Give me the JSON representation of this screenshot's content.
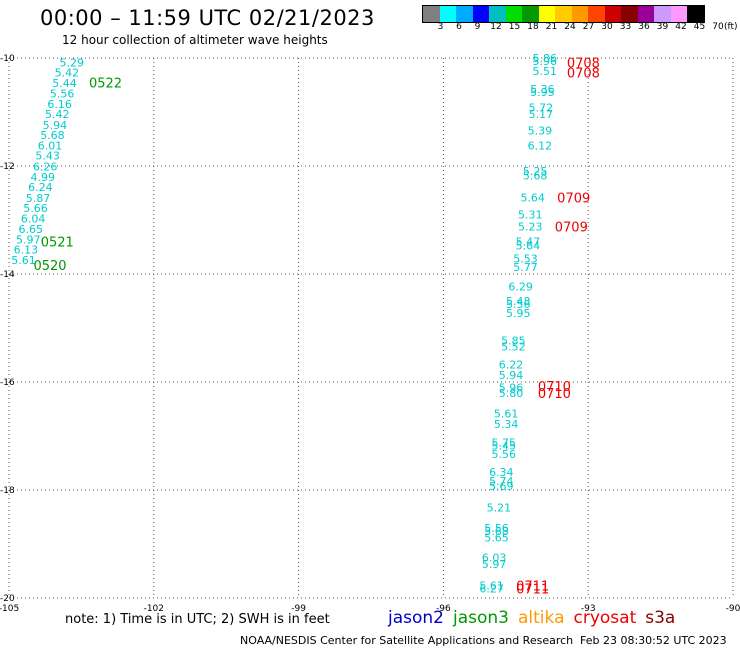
{
  "header": {
    "title": "00:00 – 11:59 UTC 02/21/2023",
    "subtitle": "12 hour collection of altimeter wave heights"
  },
  "colorbar": {
    "colors": [
      "#808080",
      "#00ffff",
      "#00aaff",
      "#0000ff",
      "#00bfbf",
      "#00dd00",
      "#009900",
      "#ffff00",
      "#ffcc00",
      "#ff9900",
      "#ff4400",
      "#cc0000",
      "#880000",
      "#990099",
      "#cc99ff",
      "#ff99ff",
      "#000000"
    ],
    "labels": [
      "3",
      "6",
      "9",
      "12",
      "15",
      "18",
      "21",
      "24",
      "27",
      "30",
      "33",
      "36",
      "39",
      "42",
      "45",
      "70"
    ],
    "unit": "(ft)"
  },
  "chart_data": {
    "type": "scatter",
    "title": "00:00 – 11:59 UTC 02/21/2023",
    "subtitle": "12 hour collection of altimeter wave heights",
    "xlim": [
      -105,
      -90
    ],
    "ylim": [
      -20,
      -10
    ],
    "x_ticks": [
      -105,
      -102,
      -99,
      -96,
      -93,
      -90
    ],
    "y_ticks": [
      -10,
      -12,
      -14,
      -16,
      -18,
      -20
    ],
    "x_tick_labels": [
      "-105",
      "-102",
      "-99",
      "-96",
      "-93",
      "-90"
    ],
    "y_tick_labels": [
      "-10",
      "-12",
      "-14",
      "-16",
      "-18",
      "-20"
    ],
    "grid": true,
    "swh_values": [
      {
        "x": -103.7,
        "y": -10.08,
        "label": "5.29"
      },
      {
        "x": -103.8,
        "y": -10.27,
        "label": "5.42"
      },
      {
        "x": -103.85,
        "y": -10.46,
        "label": "5.44"
      },
      {
        "x": -103.9,
        "y": -10.66,
        "label": "5.56"
      },
      {
        "x": -103.95,
        "y": -10.85,
        "label": "6.16"
      },
      {
        "x": -104.0,
        "y": -11.04,
        "label": "5.42"
      },
      {
        "x": -104.05,
        "y": -11.24,
        "label": "5.94"
      },
      {
        "x": -104.1,
        "y": -11.43,
        "label": "5.68"
      },
      {
        "x": -104.15,
        "y": -11.62,
        "label": "6.01"
      },
      {
        "x": -104.2,
        "y": -11.81,
        "label": "5.43"
      },
      {
        "x": -104.25,
        "y": -12.01,
        "label": "6.26"
      },
      {
        "x": -104.3,
        "y": -12.2,
        "label": "4.99"
      },
      {
        "x": -104.35,
        "y": -12.39,
        "label": "6.24"
      },
      {
        "x": -104.4,
        "y": -12.59,
        "label": "5.87"
      },
      {
        "x": -104.45,
        "y": -12.78,
        "label": "5.66"
      },
      {
        "x": -104.5,
        "y": -12.97,
        "label": "6.04"
      },
      {
        "x": -104.55,
        "y": -13.17,
        "label": "6.65"
      },
      {
        "x": -104.6,
        "y": -13.36,
        "label": "5.97"
      },
      {
        "x": -104.65,
        "y": -13.55,
        "label": "6.13"
      },
      {
        "x": -104.7,
        "y": -13.74,
        "label": "5.61"
      },
      {
        "x": -93.9,
        "y": -10.0,
        "label": "5.86"
      },
      {
        "x": -93.9,
        "y": -10.06,
        "label": "5.96"
      },
      {
        "x": -93.9,
        "y": -10.24,
        "label": "5.51"
      },
      {
        "x": -93.95,
        "y": -10.57,
        "label": "5.36"
      },
      {
        "x": -93.95,
        "y": -10.63,
        "label": "5.95"
      },
      {
        "x": -93.98,
        "y": -10.92,
        "label": "5.72"
      },
      {
        "x": -93.98,
        "y": -11.04,
        "label": "5.17"
      },
      {
        "x": -94.0,
        "y": -11.34,
        "label": "5.39"
      },
      {
        "x": -94.0,
        "y": -11.62,
        "label": "6.12"
      },
      {
        "x": -94.1,
        "y": -12.09,
        "label": "5.25"
      },
      {
        "x": -94.1,
        "y": -12.18,
        "label": "5.68"
      },
      {
        "x": -94.15,
        "y": -12.58,
        "label": "5.64"
      },
      {
        "x": -94.2,
        "y": -12.9,
        "label": "5.31"
      },
      {
        "x": -94.2,
        "y": -13.12,
        "label": "5.23"
      },
      {
        "x": -94.25,
        "y": -13.4,
        "label": "5.47"
      },
      {
        "x": -94.25,
        "y": -13.47,
        "label": "5.64"
      },
      {
        "x": -94.3,
        "y": -13.71,
        "label": "5.53"
      },
      {
        "x": -94.3,
        "y": -13.87,
        "label": "5.77"
      },
      {
        "x": -94.4,
        "y": -14.23,
        "label": "6.29"
      },
      {
        "x": -94.45,
        "y": -14.5,
        "label": "5.48"
      },
      {
        "x": -94.45,
        "y": -14.56,
        "label": "5.56"
      },
      {
        "x": -94.45,
        "y": -14.72,
        "label": "5.95"
      },
      {
        "x": -94.55,
        "y": -15.23,
        "label": "5.85"
      },
      {
        "x": -94.55,
        "y": -15.34,
        "label": "5.52"
      },
      {
        "x": -94.6,
        "y": -15.68,
        "label": "6.22"
      },
      {
        "x": -94.6,
        "y": -15.87,
        "label": "5.94"
      },
      {
        "x": -94.6,
        "y": -16.1,
        "label": "5.96"
      },
      {
        "x": -94.6,
        "y": -16.2,
        "label": "5.80"
      },
      {
        "x": -94.7,
        "y": -16.58,
        "label": "5.61"
      },
      {
        "x": -94.7,
        "y": -16.78,
        "label": "5.34"
      },
      {
        "x": -94.75,
        "y": -17.12,
        "label": "5.75"
      },
      {
        "x": -94.75,
        "y": -17.18,
        "label": "5.45"
      },
      {
        "x": -94.75,
        "y": -17.33,
        "label": "5.56"
      },
      {
        "x": -94.8,
        "y": -17.67,
        "label": "6.34"
      },
      {
        "x": -94.8,
        "y": -17.83,
        "label": "5.74"
      },
      {
        "x": -94.8,
        "y": -17.93,
        "label": "5.69"
      },
      {
        "x": -94.85,
        "y": -18.32,
        "label": "5.21"
      },
      {
        "x": -94.9,
        "y": -18.7,
        "label": "5.56"
      },
      {
        "x": -94.9,
        "y": -18.76,
        "label": "5.68"
      },
      {
        "x": -94.9,
        "y": -18.88,
        "label": "5.65"
      },
      {
        "x": -94.95,
        "y": -19.25,
        "label": "6.03"
      },
      {
        "x": -94.95,
        "y": -19.37,
        "label": "5.97"
      },
      {
        "x": -95.0,
        "y": -19.77,
        "label": "5.61"
      },
      {
        "x": -95.0,
        "y": -19.82,
        "label": "6.27"
      }
    ],
    "pass_labels": [
      {
        "x": -103.0,
        "y": -10.45,
        "label": "0522",
        "mission": "jason3"
      },
      {
        "x": -104.0,
        "y": -13.4,
        "label": "0521",
        "mission": "jason3"
      },
      {
        "x": -104.15,
        "y": -13.83,
        "label": "0520",
        "mission": "jason3"
      },
      {
        "x": -93.1,
        "y": -10.08,
        "label": "0708",
        "mission": "cryosat"
      },
      {
        "x": -93.1,
        "y": -10.27,
        "label": "0708",
        "mission": "cryosat"
      },
      {
        "x": -93.3,
        "y": -12.58,
        "label": "0709",
        "mission": "cryosat"
      },
      {
        "x": -93.35,
        "y": -13.12,
        "label": "0709",
        "mission": "cryosat"
      },
      {
        "x": -93.7,
        "y": -16.07,
        "label": "0710",
        "mission": "cryosat"
      },
      {
        "x": -93.7,
        "y": -16.2,
        "label": "0710",
        "mission": "cryosat"
      },
      {
        "x": -94.15,
        "y": -19.77,
        "label": "0711",
        "mission": "cryosat"
      },
      {
        "x": -94.15,
        "y": -19.82,
        "label": "0711",
        "mission": "cryosat"
      }
    ],
    "legend": [
      {
        "name": "jason2",
        "color": "#0000cc"
      },
      {
        "name": "jason3",
        "color": "#009900"
      },
      {
        "name": "altika",
        "color": "#ff9900"
      },
      {
        "name": "cryosat",
        "color": "#ee0000"
      },
      {
        "name": "s3a",
        "color": "#880000"
      }
    ],
    "legend_position": "bottom-right"
  },
  "colors": {
    "swh_text": "#00cccc",
    "jason3": "#009900",
    "cryosat": "#ee0000",
    "grid": "#555555"
  },
  "footer": {
    "note": "note: 1) Time is in UTC; 2) SWH is in feet",
    "credit": "NOAA/NESDIS Center for Satellite Applications and Research",
    "timestamp": "Feb 23 08:30:52 UTC 2023"
  }
}
